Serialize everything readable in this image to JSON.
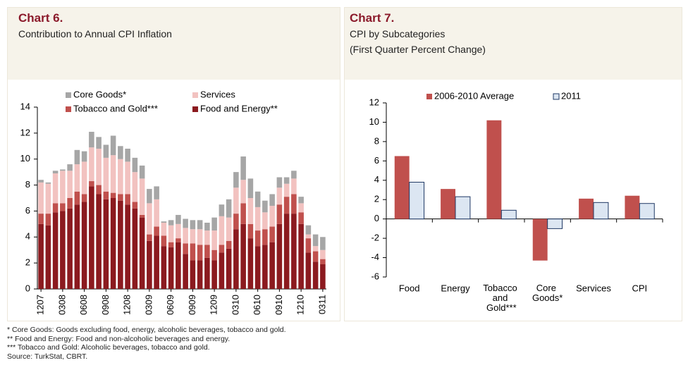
{
  "chart_data": [
    {
      "type": "stacked-bar",
      "title": "Chart 6.",
      "subtitle": "Contribution to Annual CPI Inflation",
      "categories": [
        "1207",
        null,
        null,
        "0308",
        null,
        null,
        "0608",
        null,
        null,
        "0908",
        null,
        null,
        "1208",
        null,
        null,
        "0309",
        null,
        null,
        "0609",
        null,
        null,
        "0909",
        null,
        null,
        "1209",
        null,
        null,
        "0310",
        null,
        null,
        "0610",
        null,
        null,
        "0910",
        null,
        null,
        "1210",
        null,
        null,
        "0311"
      ],
      "series": [
        {
          "name": "Food and Energy**",
          "color": "#8b1a1f",
          "values": [
            5.0,
            4.9,
            5.9,
            6.0,
            6.2,
            6.5,
            6.7,
            7.9,
            7.3,
            6.9,
            7.0,
            6.8,
            6.5,
            6.2,
            5.5,
            3.7,
            4.1,
            3.3,
            3.2,
            3.6,
            2.7,
            2.2,
            2.2,
            2.4,
            2.2,
            2.8,
            3.1,
            4.6,
            5.0,
            3.9,
            3.3,
            3.4,
            3.6,
            5.0,
            5.8,
            5.8,
            5.0,
            2.8,
            2.1,
            1.9
          ]
        },
        {
          "name": "Tobacco and Gold***",
          "color": "#c0504d",
          "values": [
            0.8,
            0.9,
            0.7,
            0.6,
            0.8,
            1.0,
            0.6,
            0.4,
            0.7,
            0.6,
            0.4,
            0.5,
            0.8,
            0.5,
            0.2,
            0.5,
            0.7,
            0.8,
            0.4,
            0.3,
            0.8,
            1.3,
            1.2,
            1.0,
            0.8,
            0.6,
            0.6,
            1.2,
            1.6,
            1.1,
            1.2,
            1.2,
            1.2,
            1.5,
            1.3,
            1.5,
            0.9,
            1.1,
            0.8,
            0.4
          ]
        },
        {
          "name": "Services",
          "color": "#f2c2c0",
          "values": [
            2.4,
            2.3,
            2.3,
            2.5,
            2.1,
            2.1,
            2.5,
            2.6,
            2.8,
            2.6,
            2.9,
            2.7,
            2.5,
            2.3,
            2.8,
            2.4,
            2.1,
            1.0,
            1.3,
            1.1,
            1.2,
            1.1,
            1.2,
            1.1,
            1.5,
            2.2,
            1.8,
            2.0,
            1.8,
            2.0,
            1.8,
            1.3,
            1.6,
            1.3,
            1.0,
            1.2,
            0.7,
            0.3,
            0.4,
            0.7
          ]
        },
        {
          "name": "Core Goods*",
          "color": "#a6a6a6",
          "values": [
            0.2,
            0.1,
            0.2,
            0.1,
            0.5,
            1.1,
            0.8,
            1.2,
            0.9,
            1.0,
            1.5,
            1.0,
            1.0,
            1.1,
            1.0,
            1.1,
            1.0,
            0.1,
            0.4,
            0.7,
            0.7,
            0.7,
            0.7,
            0.6,
            1.0,
            0.9,
            1.4,
            1.2,
            1.8,
            1.5,
            1.2,
            0.9,
            0.9,
            0.8,
            0.5,
            0.6,
            0.5,
            0.7,
            0.9,
            1.0
          ]
        }
      ],
      "ylim": [
        0,
        14
      ],
      "yticks": [
        0,
        2,
        4,
        6,
        8,
        10,
        12,
        14
      ]
    },
    {
      "type": "bar",
      "title": "Chart 7.",
      "subtitle": [
        "CPI by Subcategories",
        "(First Quarter Percent Change)"
      ],
      "categories": [
        "Food",
        "Energy",
        "Tobacco and Gold***",
        "Core Goods*",
        "Services",
        "CPI"
      ],
      "series": [
        {
          "name": "2006-2010 Average",
          "color": "#c0504d",
          "values": [
            6.5,
            3.1,
            10.2,
            -4.3,
            2.1,
            2.4
          ]
        },
        {
          "name": "2011",
          "color": "#dce6f2",
          "values": [
            3.8,
            2.3,
            0.9,
            -1.0,
            1.7,
            1.6
          ]
        }
      ],
      "ylim": [
        -6,
        12
      ],
      "yticks": [
        -6,
        -4,
        -2,
        0,
        2,
        4,
        6,
        8,
        10,
        12
      ]
    }
  ],
  "footnotes": [
    "* Core Goods: Goods excluding food, energy, alcoholic beverages, tobacco and gold.",
    "** Food and Energy: Food and non-alcoholic beverages and energy.",
    "*** Tobacco and Gold: Alcoholic beverages, tobacco and gold.",
    "Source: TurkStat, CBRT."
  ]
}
